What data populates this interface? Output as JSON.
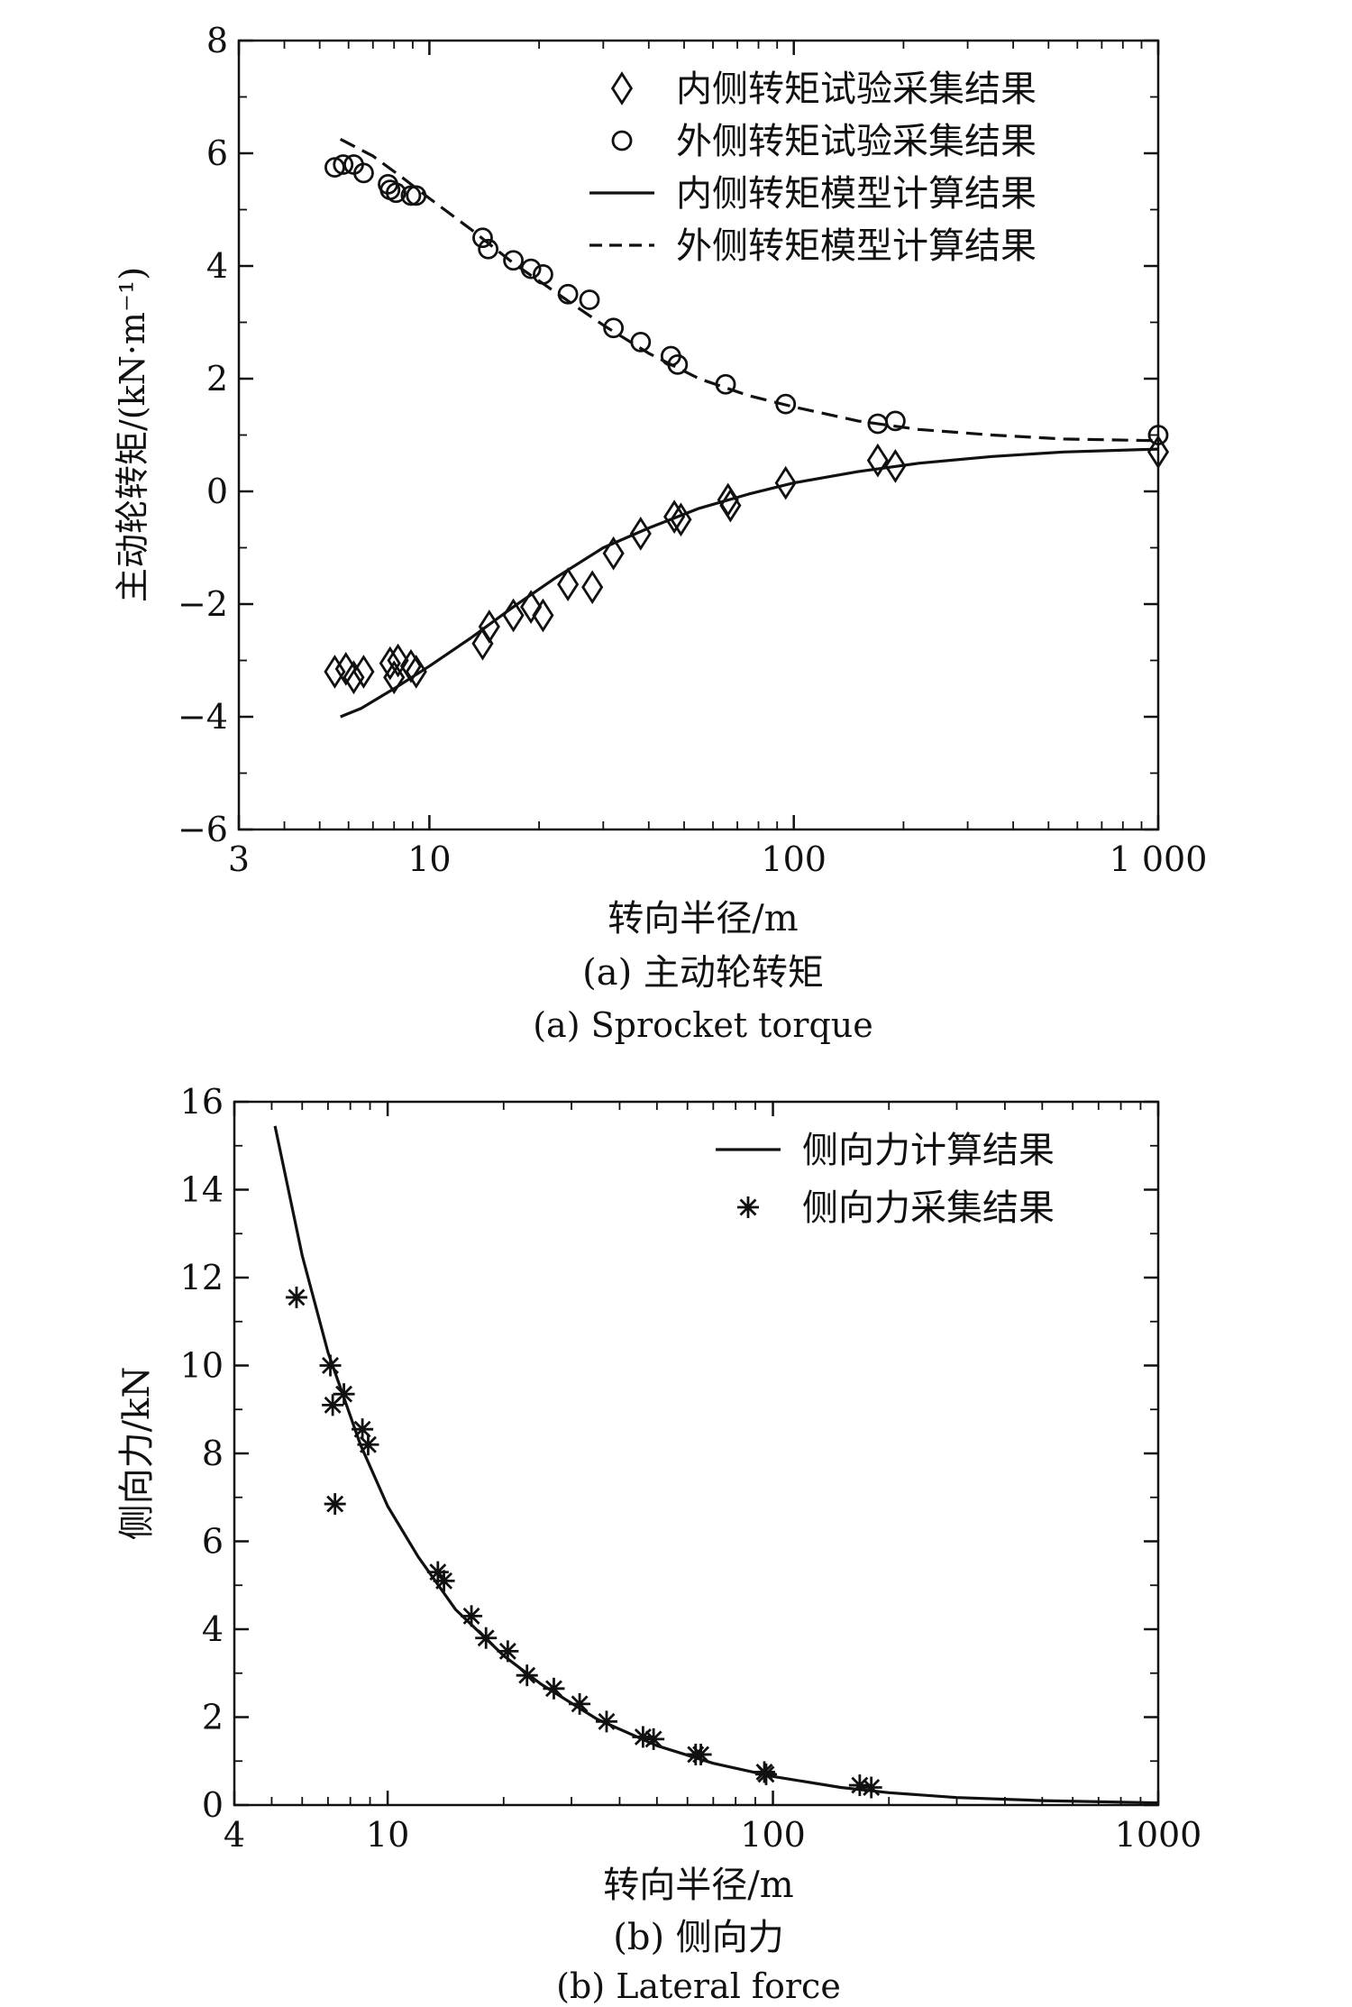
{
  "chart_data": [
    {
      "type": "scatter",
      "x_scale": "log",
      "xlim": [
        3,
        1000
      ],
      "ylim": [
        -6,
        8
      ],
      "xticks": [
        3,
        10,
        100,
        1000
      ],
      "xtick_labels": [
        "3",
        "10",
        "100",
        "1 000"
      ],
      "yticks": [
        -6,
        -4,
        -2,
        0,
        2,
        4,
        6,
        8
      ],
      "ytick_labels": [
        "−6",
        "−4",
        "−2",
        "0",
        "2",
        "4",
        "6",
        "8"
      ],
      "xlabel": "转向半径/m",
      "ylabel": "主动轮转矩/(kN·m⁻¹)",
      "grid": false,
      "legend_position": "top-right",
      "caption_cn": "(a) 主动轮转矩",
      "caption_en": "(a) Sprocket torque",
      "series": [
        {
          "name": "内侧转矩试验采集结果",
          "style": "diamond",
          "points": [
            [
              5.5,
              -3.2
            ],
            [
              5.9,
              -3.15
            ],
            [
              6.2,
              -3.3
            ],
            [
              6.6,
              -3.2
            ],
            [
              7.8,
              -3.05
            ],
            [
              8.0,
              -3.3
            ],
            [
              8.2,
              -3.0
            ],
            [
              8.9,
              -3.1
            ],
            [
              9.2,
              -3.2
            ],
            [
              14,
              -2.7
            ],
            [
              14.6,
              -2.4
            ],
            [
              17,
              -2.2
            ],
            [
              19,
              -2.05
            ],
            [
              20.5,
              -2.2
            ],
            [
              24,
              -1.65
            ],
            [
              28,
              -1.7
            ],
            [
              32,
              -1.1
            ],
            [
              38,
              -0.75
            ],
            [
              47,
              -0.45
            ],
            [
              49,
              -0.5
            ],
            [
              66,
              -0.15
            ],
            [
              67,
              -0.25
            ],
            [
              95,
              0.15
            ],
            [
              170,
              0.55
            ],
            [
              190,
              0.45
            ],
            [
              1000,
              0.7
            ]
          ]
        },
        {
          "name": "外侧转矩试验采集结果",
          "style": "circle",
          "points": [
            [
              5.5,
              5.75
            ],
            [
              5.8,
              5.8
            ],
            [
              6.2,
              5.8
            ],
            [
              6.6,
              5.65
            ],
            [
              7.7,
              5.45
            ],
            [
              7.8,
              5.35
            ],
            [
              8.1,
              5.3
            ],
            [
              8.9,
              5.25
            ],
            [
              9.2,
              5.25
            ],
            [
              14,
              4.5
            ],
            [
              14.5,
              4.3
            ],
            [
              17,
              4.1
            ],
            [
              19,
              3.95
            ],
            [
              20.5,
              3.85
            ],
            [
              24,
              3.5
            ],
            [
              27.5,
              3.4
            ],
            [
              32,
              2.9
            ],
            [
              38,
              2.65
            ],
            [
              46,
              2.4
            ],
            [
              48,
              2.25
            ],
            [
              65,
              1.9
            ],
            [
              95,
              1.55
            ],
            [
              170,
              1.2
            ],
            [
              190,
              1.25
            ],
            [
              1000,
              1.0
            ]
          ]
        },
        {
          "name": "内侧转矩模型计算结果",
          "style": "solid",
          "points": [
            [
              5.7,
              -4.0
            ],
            [
              6.5,
              -3.85
            ],
            [
              8,
              -3.5
            ],
            [
              10,
              -3.1
            ],
            [
              13,
              -2.6
            ],
            [
              17,
              -2.05
            ],
            [
              22,
              -1.55
            ],
            [
              30,
              -1.0
            ],
            [
              40,
              -0.65
            ],
            [
              55,
              -0.3
            ],
            [
              75,
              -0.05
            ],
            [
              100,
              0.15
            ],
            [
              150,
              0.35
            ],
            [
              220,
              0.5
            ],
            [
              350,
              0.62
            ],
            [
              550,
              0.7
            ],
            [
              1000,
              0.75
            ]
          ]
        },
        {
          "name": "外侧转矩模型计算结果",
          "style": "dashed",
          "points": [
            [
              5.7,
              6.25
            ],
            [
              7,
              5.95
            ],
            [
              8.5,
              5.55
            ],
            [
              10,
              5.2
            ],
            [
              13,
              4.65
            ],
            [
              17,
              4.05
            ],
            [
              22,
              3.55
            ],
            [
              30,
              2.95
            ],
            [
              40,
              2.45
            ],
            [
              55,
              2.0
            ],
            [
              75,
              1.7
            ],
            [
              100,
              1.5
            ],
            [
              150,
              1.25
            ],
            [
              220,
              1.1
            ],
            [
              350,
              1.0
            ],
            [
              550,
              0.93
            ],
            [
              1000,
              0.9
            ]
          ]
        }
      ]
    },
    {
      "type": "scatter",
      "x_scale": "log",
      "xlim": [
        4,
        1000
      ],
      "ylim": [
        0,
        16
      ],
      "xticks": [
        4,
        10,
        100,
        1000
      ],
      "xtick_labels": [
        "4",
        "10",
        "100",
        "1000"
      ],
      "yticks": [
        0,
        2,
        4,
        6,
        8,
        10,
        12,
        14,
        16
      ],
      "ytick_labels": [
        "0",
        "2",
        "4",
        "6",
        "8",
        "10",
        "12",
        "14",
        "16"
      ],
      "xlabel": "转向半径/m",
      "ylabel": "侧向力/kN",
      "grid": false,
      "legend_position": "top-right",
      "caption_cn": "(b) 侧向力",
      "caption_en": "(b) Lateral force",
      "series": [
        {
          "name": "侧向力计算结果",
          "style": "solid",
          "points": [
            [
              5.1,
              15.45
            ],
            [
              6,
              12.5
            ],
            [
              7,
              10.3
            ],
            [
              8.5,
              8.2
            ],
            [
              10,
              6.8
            ],
            [
              12,
              5.65
            ],
            [
              15,
              4.45
            ],
            [
              20,
              3.4
            ],
            [
              25,
              2.75
            ],
            [
              35,
              1.95
            ],
            [
              50,
              1.35
            ],
            [
              70,
              0.95
            ],
            [
              100,
              0.65
            ],
            [
              150,
              0.4
            ],
            [
              200,
              0.28
            ],
            [
              300,
              0.17
            ],
            [
              500,
              0.1
            ],
            [
              1000,
              0.05
            ]
          ]
        },
        {
          "name": "侧向力采集结果",
          "style": "asterisk",
          "points": [
            [
              5.8,
              11.55
            ],
            [
              7.1,
              10.0
            ],
            [
              7.2,
              9.1
            ],
            [
              7.3,
              6.85
            ],
            [
              7.7,
              9.35
            ],
            [
              8.6,
              8.55
            ],
            [
              8.9,
              8.2
            ],
            [
              13.5,
              5.3
            ],
            [
              14,
              5.1
            ],
            [
              16.5,
              4.3
            ],
            [
              18,
              3.8
            ],
            [
              20.5,
              3.5
            ],
            [
              23,
              2.95
            ],
            [
              27,
              2.65
            ],
            [
              31.5,
              2.3
            ],
            [
              37,
              1.9
            ],
            [
              46,
              1.55
            ],
            [
              49,
              1.5
            ],
            [
              63,
              1.15
            ],
            [
              65,
              1.15
            ],
            [
              95,
              0.75
            ],
            [
              96,
              0.7
            ],
            [
              168,
              0.45
            ],
            [
              180,
              0.4
            ]
          ]
        }
      ]
    }
  ]
}
